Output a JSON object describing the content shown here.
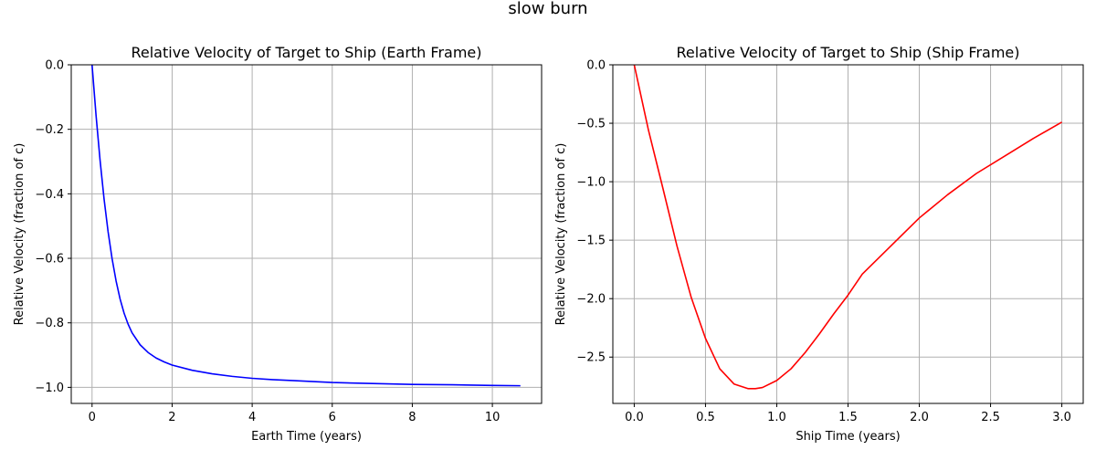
{
  "figure": {
    "suptitle": "slow burn"
  },
  "chart_data": [
    {
      "type": "line",
      "title": "Relative Velocity of Target to Ship (Earth Frame)",
      "xlabel": "Earth Time (years)",
      "ylabel": "Relative Velocity (fraction of c)",
      "xlim": [
        -0.52,
        11.23
      ],
      "ylim": [
        -1.0498,
        0.0
      ],
      "xticks": [
        0,
        2,
        4,
        6,
        8,
        10
      ],
      "yticks": [
        0.0,
        -0.2,
        -0.4,
        -0.6,
        -0.8,
        -1.0
      ],
      "xtick_labels": [
        "0",
        "2",
        "4",
        "6",
        "8",
        "10"
      ],
      "ytick_labels": [
        "0.0",
        "−0.2",
        "−0.4",
        "−0.6",
        "−0.8",
        "−1.0"
      ],
      "grid": true,
      "series": [
        {
          "color": "#0000ff",
          "x": [
            0.0,
            0.1,
            0.2,
            0.3,
            0.4,
            0.5,
            0.6,
            0.7,
            0.8,
            0.9,
            1.0,
            1.2,
            1.4,
            1.6,
            1.8,
            2.0,
            2.5,
            3.0,
            3.5,
            4.0,
            4.5,
            5.0,
            6.0,
            7.0,
            8.0,
            9.0,
            10.0,
            10.7
          ],
          "y": [
            0.0,
            -0.157,
            -0.296,
            -0.416,
            -0.517,
            -0.601,
            -0.67,
            -0.726,
            -0.77,
            -0.804,
            -0.831,
            -0.868,
            -0.892,
            -0.909,
            -0.921,
            -0.931,
            -0.947,
            -0.958,
            -0.966,
            -0.972,
            -0.976,
            -0.979,
            -0.985,
            -0.988,
            -0.991,
            -0.992,
            -0.994,
            -0.995
          ]
        }
      ]
    },
    {
      "type": "line",
      "title": "Relative Velocity of Target to Ship (Ship Frame)",
      "xlabel": "Ship Time (years)",
      "ylabel": "Relative Velocity (fraction of c)",
      "xlim": [
        -0.15,
        3.15
      ],
      "ylim": [
        -2.8962,
        0.0
      ],
      "xticks": [
        0.0,
        0.5,
        1.0,
        1.5,
        2.0,
        2.5,
        3.0
      ],
      "yticks": [
        0.0,
        -0.5,
        -1.0,
        -1.5,
        -2.0,
        -2.5
      ],
      "xtick_labels": [
        "0.0",
        "0.5",
        "1.0",
        "1.5",
        "2.0",
        "2.5",
        "3.0"
      ],
      "ytick_labels": [
        "0.0",
        "−0.5",
        "−1.0",
        "−1.5",
        "−2.0",
        "−2.5"
      ],
      "grid": true,
      "series": [
        {
          "color": "#ff0000",
          "x": [
            0.0,
            0.1,
            0.2,
            0.3,
            0.4,
            0.5,
            0.6,
            0.7,
            0.8,
            0.85,
            0.9,
            1.0,
            1.1,
            1.2,
            1.3,
            1.4,
            1.5,
            1.6,
            1.8,
            2.0,
            2.2,
            2.4,
            2.6,
            2.8,
            3.0
          ],
          "y": [
            0.0,
            -0.56,
            -1.05,
            -1.55,
            -1.99,
            -2.34,
            -2.6,
            -2.73,
            -2.77,
            -2.77,
            -2.76,
            -2.7,
            -2.6,
            -2.46,
            -2.3,
            -2.13,
            -1.97,
            -1.79,
            -1.55,
            -1.31,
            -1.11,
            -0.93,
            -0.78,
            -0.63,
            -0.49
          ]
        }
      ]
    }
  ]
}
